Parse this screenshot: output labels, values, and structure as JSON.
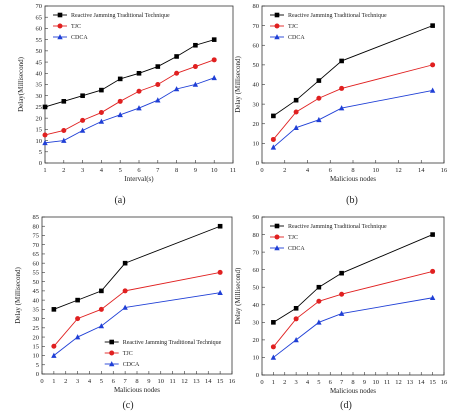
{
  "chart_data": [
    {
      "type": "line",
      "panel_caption": "(a)",
      "xlabel": "Interval(s)",
      "ylabel": "Delay(Millisecond)",
      "xlim": [
        1,
        11
      ],
      "ylim": [
        0,
        70
      ],
      "xticks": [
        "1",
        "2",
        "3",
        "4",
        "5",
        "6",
        "7",
        "8",
        "9",
        "10",
        "11"
      ],
      "yticks": [
        "0",
        "5",
        "10",
        "15",
        "20",
        "25",
        "30",
        "35",
        "40",
        "45",
        "50",
        "55",
        "60",
        "65",
        "70"
      ],
      "x": [
        1,
        2,
        3,
        4,
        5,
        6,
        7,
        8,
        9,
        10
      ],
      "legend_position": "top-left",
      "series": [
        {
          "name": "Reactive Jamming Traditional Technique",
          "marker": "square",
          "color": "#000000",
          "values": [
            25,
            27.5,
            30,
            32.5,
            37.5,
            40,
            43,
            47.5,
            52.5,
            55
          ]
        },
        {
          "name": "TJC",
          "marker": "circle",
          "color": "#e02020",
          "values": [
            12.5,
            14.5,
            19,
            22.5,
            27.5,
            32,
            35,
            40,
            43,
            46
          ]
        },
        {
          "name": "CDCA",
          "marker": "triangle",
          "color": "#1f3fd6",
          "values": [
            9,
            10,
            14.5,
            18.5,
            21.5,
            24.5,
            28,
            33,
            35,
            38
          ]
        }
      ]
    },
    {
      "type": "line",
      "panel_caption": "(b)",
      "xlabel": "Malicious nodes",
      "ylabel": "Delay (Millisecond)",
      "xlim": [
        0,
        16
      ],
      "ylim": [
        0,
        80
      ],
      "xticks": [
        "0",
        "2",
        "4",
        "6",
        "8",
        "10",
        "12",
        "14",
        "16"
      ],
      "yticks": [
        "0",
        "10",
        "20",
        "30",
        "40",
        "50",
        "60",
        "70",
        "80"
      ],
      "x": [
        1,
        3,
        5,
        7,
        15
      ],
      "legend_position": "top-left",
      "series": [
        {
          "name": "Reactive Jamming Traditional Technique",
          "marker": "square",
          "color": "#000000",
          "values": [
            24,
            32,
            42,
            52,
            70
          ]
        },
        {
          "name": "TJC",
          "marker": "circle",
          "color": "#e02020",
          "values": [
            12,
            26,
            33,
            38,
            50
          ]
        },
        {
          "name": "CDCA",
          "marker": "triangle",
          "color": "#1f3fd6",
          "values": [
            8,
            18,
            22,
            28,
            37
          ]
        }
      ]
    },
    {
      "type": "line",
      "panel_caption": "(c)",
      "xlabel": "Malicious nodes",
      "ylabel": "Delay (Millisecond)",
      "xlim": [
        0,
        16
      ],
      "ylim": [
        0,
        85
      ],
      "xticks": [
        "0",
        "1",
        "2",
        "3",
        "4",
        "5",
        "6",
        "7",
        "8",
        "9",
        "10",
        "11",
        "12",
        "13",
        "14",
        "15",
        "16"
      ],
      "yticks": [
        "0",
        "5",
        "10",
        "15",
        "20",
        "25",
        "30",
        "35",
        "40",
        "45",
        "50",
        "55",
        "60",
        "65",
        "70",
        "75",
        "80",
        "85"
      ],
      "x": [
        1,
        3,
        5,
        7,
        15
      ],
      "legend_position": "bottom-center",
      "series": [
        {
          "name": "Reactive Jamming Traditional Technique",
          "marker": "square",
          "color": "#000000",
          "values": [
            35,
            40,
            45,
            60,
            80
          ]
        },
        {
          "name": "TJC",
          "marker": "circle",
          "color": "#e02020",
          "values": [
            15,
            30,
            35,
            45,
            55
          ]
        },
        {
          "name": "CDCA",
          "marker": "triangle",
          "color": "#1f3fd6",
          "values": [
            10,
            20,
            26,
            36,
            44
          ]
        }
      ]
    },
    {
      "type": "line",
      "panel_caption": "(d)",
      "xlabel": "Malicious nodes",
      "ylabel": "Delay (Millisecond)",
      "xlim": [
        0,
        16
      ],
      "ylim": [
        0,
        90
      ],
      "xticks": [
        "0",
        "1",
        "2",
        "3",
        "4",
        "5",
        "6",
        "7",
        "8",
        "9",
        "10",
        "11",
        "12",
        "13",
        "14",
        "15",
        "16"
      ],
      "yticks": [
        "0",
        "10",
        "20",
        "30",
        "40",
        "50",
        "60",
        "70",
        "80",
        "90"
      ],
      "x": [
        1,
        3,
        5,
        7,
        15
      ],
      "legend_position": "top-left",
      "series": [
        {
          "name": "Reactive Jamming Traditional Technique",
          "marker": "square",
          "color": "#000000",
          "values": [
            30,
            38,
            50,
            58,
            80
          ]
        },
        {
          "name": "TJC",
          "marker": "circle",
          "color": "#e02020",
          "values": [
            16,
            32,
            42,
            46,
            59
          ]
        },
        {
          "name": "CDCA",
          "marker": "triangle",
          "color": "#1f3fd6",
          "values": [
            10,
            20,
            30,
            35,
            44
          ]
        }
      ]
    }
  ]
}
